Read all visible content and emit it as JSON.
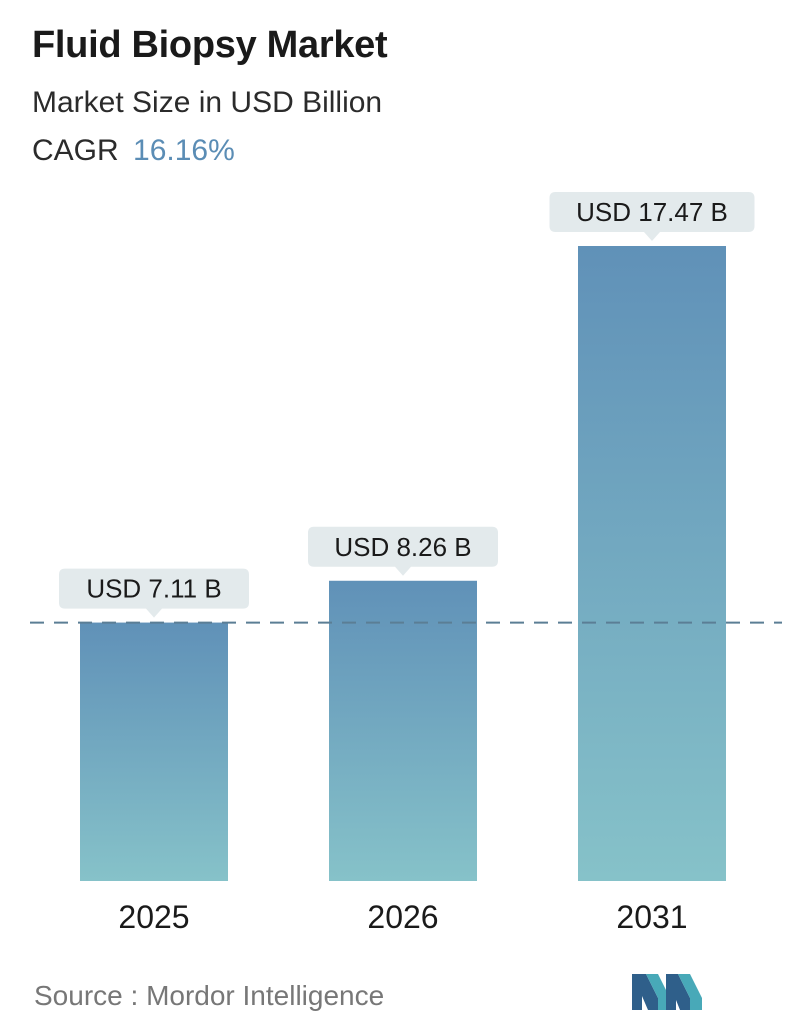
{
  "title": "Fluid Biopsy Market",
  "subtitle": "Market Size in USD Billion",
  "cagr_label": "CAGR",
  "cagr_value": "16.16%",
  "source_label": "Source :",
  "source_name": "Mordor Intelligence",
  "logo": "mordor-intelligence-logo",
  "colors": {
    "bar_top": "#6091b8",
    "bar_bottom": "#86c2c9",
    "callout_bg": "#e3eaec",
    "reference_line": "#5b7e95",
    "accent": "#5b8db5"
  },
  "chart_data": {
    "type": "bar",
    "categories": [
      "2025",
      "2026",
      "2031"
    ],
    "values": [
      7.11,
      8.26,
      17.47
    ],
    "data_labels": [
      "USD 7.11 B",
      "USD 8.26 B",
      "USD 17.47 B"
    ],
    "unit": "USD Billion",
    "reference_line_value": 7.11,
    "grid": false,
    "legend": "none"
  }
}
